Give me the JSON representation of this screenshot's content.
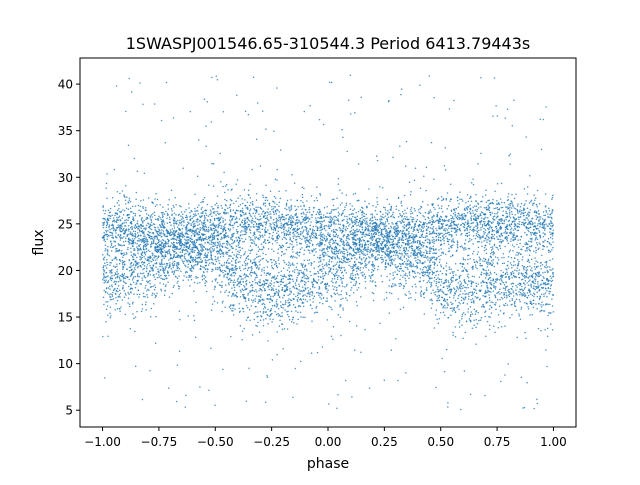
{
  "chart_data": {
    "type": "scatter",
    "title": "1SWASPJ001546.65-310544.3 Period 6413.79443s",
    "xlabel": "phase",
    "ylabel": "flux",
    "xlim": [
      -1.1,
      1.1
    ],
    "ylim": [
      3.2,
      42.8
    ],
    "xticks": [
      -1.0,
      -0.75,
      -0.5,
      -0.25,
      0.0,
      0.25,
      0.5,
      0.75,
      1.0
    ],
    "xtick_labels": [
      "−1.00",
      "−0.75",
      "−0.50",
      "−0.25",
      "0.00",
      "0.25",
      "0.50",
      "0.75",
      "1.00"
    ],
    "yticks": [
      5,
      10,
      15,
      20,
      25,
      30,
      35,
      40
    ],
    "ytick_labels": [
      "5",
      "10",
      "15",
      "20",
      "25",
      "30",
      "35",
      "40"
    ],
    "grid": false,
    "marker_color": "#1f77b4",
    "series_profile": {
      "phase": [
        -1.0,
        -0.875,
        -0.75,
        -0.625,
        -0.5,
        -0.375,
        -0.25,
        -0.125,
        0.0,
        0.125,
        0.25,
        0.375,
        0.5,
        0.625,
        0.75,
        0.875,
        1.0
      ],
      "upper_branch_flux": [
        24.8,
        24.3,
        23.8,
        23.8,
        24.5,
        25.3,
        25.2,
        24.6,
        24.5,
        24.2,
        23.8,
        23.8,
        24.5,
        25.3,
        25.2,
        24.8,
        24.8
      ],
      "lower_branch_flux": [
        18.5,
        19.8,
        21.2,
        22.5,
        21.5,
        18.5,
        17.5,
        18.5,
        19.8,
        21.2,
        22.5,
        21.5,
        18.5,
        17.5,
        18.5,
        18.5,
        18.5
      ],
      "inner_gap_flux": [
        21.5,
        21.8,
        22.6,
        23.0,
        23.0,
        22.6,
        22.2,
        22.0,
        21.8,
        22.0,
        22.6,
        23.0,
        23.0,
        22.6,
        22.0,
        21.8,
        21.5
      ],
      "scatter_range": [
        5,
        41
      ]
    }
  }
}
